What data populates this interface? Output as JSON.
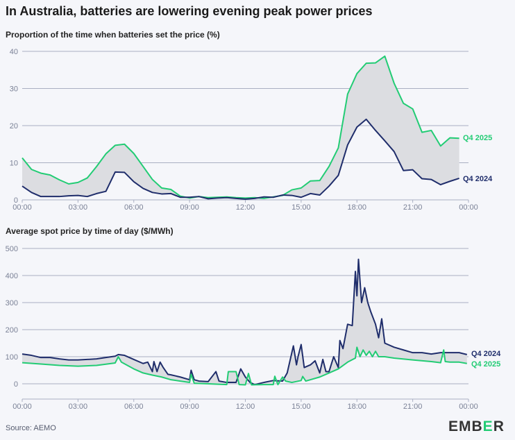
{
  "title": "In Australia, batteries are lowering evening peak power prices",
  "source": "Source: AEMO",
  "logo": "EMBER",
  "colors": {
    "q4_2025": "#22cc74",
    "q4_2024": "#1f2d6b",
    "fill": "#dcdde1",
    "grid": "#a9afc2",
    "background": "#f5f6fa"
  },
  "chart_data": [
    {
      "type": "line",
      "title": "Proportion of the time when batteries set the price (%)",
      "xlabel": "",
      "ylabel": "",
      "ylim": [
        0,
        40
      ],
      "yticks": [
        "0",
        "10",
        "20",
        "30",
        "40"
      ],
      "xticks": [
        "00:00",
        "03:00",
        "06:00",
        "09:00",
        "12:00",
        "15:00",
        "18:00",
        "21:00",
        "00:00"
      ],
      "grid": true,
      "shaded_between_series": true,
      "x": [
        "00:00",
        "00:30",
        "01:00",
        "01:30",
        "02:00",
        "02:30",
        "03:00",
        "03:30",
        "04:00",
        "04:30",
        "05:00",
        "05:30",
        "06:00",
        "06:30",
        "07:00",
        "07:30",
        "08:00",
        "08:30",
        "09:00",
        "09:30",
        "10:00",
        "10:30",
        "11:00",
        "11:30",
        "12:00",
        "12:30",
        "13:00",
        "13:30",
        "14:00",
        "14:30",
        "15:00",
        "15:30",
        "16:00",
        "16:30",
        "17:00",
        "17:30",
        "18:00",
        "18:30",
        "19:00",
        "19:30",
        "20:00",
        "20:30",
        "21:00",
        "21:30",
        "22:00",
        "22:30",
        "23:00",
        "23:30"
      ],
      "series": [
        {
          "name": "Q4 2025",
          "color": "#22cc74",
          "values": [
            11.3,
            8.2,
            7.2,
            6.7,
            5.4,
            4.3,
            4.7,
            5.9,
            9.0,
            12.4,
            14.7,
            15.0,
            12.5,
            9.0,
            5.5,
            3.2,
            2.8,
            1.0,
            0.5,
            0.9,
            0.6,
            0.7,
            0.8,
            0.6,
            0.5,
            0.6,
            0.4,
            0.8,
            1.2,
            2.7,
            3.2,
            5.1,
            5.2,
            9.0,
            14.0,
            28.5,
            34.0,
            36.8,
            36.9,
            38.7,
            31.4,
            26.0,
            24.5,
            18.2,
            18.7,
            14.5,
            16.7,
            16.6
          ]
        },
        {
          "name": "Q4 2024",
          "color": "#1f2d6b",
          "values": [
            3.7,
            2.0,
            0.9,
            0.9,
            0.9,
            1.1,
            1.2,
            0.9,
            1.7,
            2.3,
            7.5,
            7.4,
            4.9,
            3.1,
            2.0,
            1.6,
            1.7,
            0.7,
            0.7,
            0.9,
            0.3,
            0.5,
            0.6,
            0.4,
            0.2,
            0.4,
            0.8,
            0.7,
            1.3,
            1.2,
            0.7,
            1.7,
            1.3,
            3.7,
            6.6,
            14.8,
            19.6,
            21.7,
            18.7,
            15.9,
            13.0,
            7.9,
            8.1,
            5.7,
            5.5,
            4.1,
            5.0,
            5.8
          ]
        }
      ]
    },
    {
      "type": "line",
      "title": "Average spot price by time of day ($/MWh)",
      "xlabel": "",
      "ylabel": "",
      "ylim": [
        -50,
        500
      ],
      "yticks": [
        "0",
        "100",
        "200",
        "300",
        "400",
        "500"
      ],
      "xticks": [
        "00:00",
        "03:00",
        "06:00",
        "09:00",
        "12:00",
        "15:00",
        "18:00",
        "21:00",
        "00:00"
      ],
      "grid": true,
      "shaded_between_series": true,
      "series": [
        {
          "name": "Q4 2024",
          "color": "#1f2d6b",
          "x": [
            "00:00",
            "00:30",
            "01:00",
            "01:30",
            "02:00",
            "02:30",
            "03:00",
            "03:30",
            "04:00",
            "04:30",
            "05:00",
            "05:10",
            "05:30",
            "06:00",
            "06:30",
            "06:45",
            "07:00",
            "07:05",
            "07:15",
            "07:25",
            "07:35",
            "07:50",
            "08:00",
            "08:30",
            "09:00",
            "09:05",
            "09:15",
            "09:30",
            "10:00",
            "10:25",
            "10:35",
            "11:00",
            "11:30",
            "11:45",
            "12:00",
            "12:15",
            "12:30",
            "13:00",
            "13:30",
            "14:00",
            "14:15",
            "14:35",
            "14:45",
            "14:50",
            "15:00",
            "15:10",
            "15:30",
            "15:45",
            "16:00",
            "16:10",
            "16:20",
            "16:30",
            "16:45",
            "17:00",
            "17:05",
            "17:15",
            "17:30",
            "17:45",
            "17:55",
            "18:00",
            "18:05",
            "18:15",
            "18:25",
            "18:35",
            "18:45",
            "19:00",
            "19:10",
            "19:20",
            "19:30",
            "20:00",
            "20:30",
            "21:00",
            "21:30",
            "22:00",
            "22:30",
            "23:00",
            "23:30",
            "23:55"
          ],
          "values": [
            110,
            105,
            97,
            97,
            92,
            88,
            88,
            90,
            92,
            97,
            102,
            108,
            105,
            90,
            75,
            80,
            45,
            82,
            45,
            80,
            60,
            35,
            33,
            25,
            15,
            50,
            15,
            10,
            8,
            45,
            10,
            5,
            5,
            55,
            25,
            5,
            -3,
            5,
            12,
            10,
            40,
            140,
            70,
            100,
            145,
            60,
            70,
            85,
            40,
            90,
            45,
            45,
            100,
            60,
            160,
            130,
            220,
            215,
            415,
            325,
            460,
            300,
            355,
            300,
            265,
            220,
            170,
            240,
            150,
            135,
            125,
            115,
            115,
            110,
            115,
            115,
            115,
            108
          ]
        },
        {
          "name": "Q4 2025",
          "color": "#22cc74",
          "x": [
            "00:00",
            "01:00",
            "02:00",
            "03:00",
            "04:00",
            "05:00",
            "05:10",
            "05:20",
            "06:00",
            "06:30",
            "07:00",
            "07:30",
            "08:00",
            "08:30",
            "09:00",
            "09:05",
            "09:15",
            "10:00",
            "11:00",
            "11:05",
            "11:30",
            "11:40",
            "12:00",
            "12:10",
            "12:20",
            "13:00",
            "13:30",
            "13:35",
            "13:45",
            "14:00",
            "14:10",
            "14:30",
            "15:00",
            "15:05",
            "15:15",
            "16:00",
            "16:30",
            "17:00",
            "17:30",
            "17:55",
            "18:00",
            "18:10",
            "18:20",
            "18:30",
            "18:40",
            "18:50",
            "19:00",
            "19:10",
            "19:30",
            "20:00",
            "21:00",
            "22:00",
            "22:30",
            "22:40",
            "22:45",
            "23:00",
            "23:30",
            "23:55"
          ],
          "values": [
            78,
            73,
            68,
            65,
            68,
            77,
            100,
            80,
            55,
            40,
            32,
            25,
            15,
            10,
            5,
            35,
            2,
            0,
            -3,
            45,
            45,
            -3,
            -4,
            38,
            -4,
            -3,
            -3,
            28,
            -3,
            25,
            10,
            5,
            12,
            27,
            10,
            25,
            40,
            55,
            80,
            95,
            135,
            100,
            125,
            105,
            120,
            100,
            120,
            100,
            100,
            95,
            88,
            82,
            78,
            125,
            82,
            80,
            80,
            75
          ]
        }
      ]
    }
  ]
}
